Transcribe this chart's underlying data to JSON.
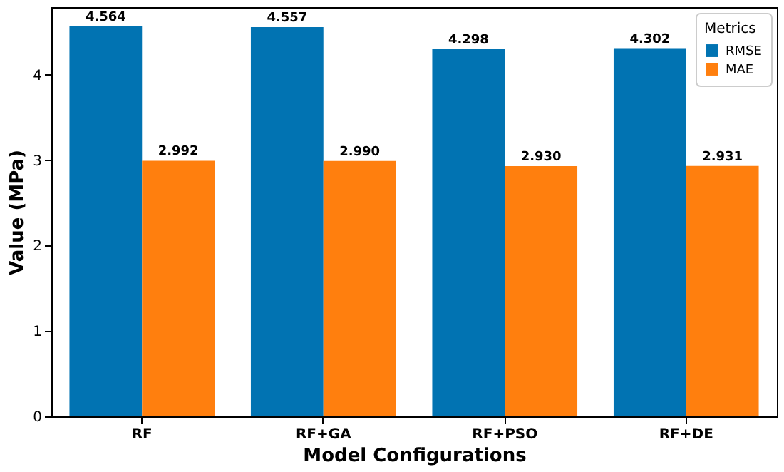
{
  "chart_data": {
    "type": "bar",
    "categories": [
      "RF",
      "RF+GA",
      "RF+PSO",
      "RF+DE"
    ],
    "series": [
      {
        "name": "RMSE",
        "color": "#0173b2",
        "values": [
          4.564,
          4.557,
          4.298,
          4.302
        ],
        "value_labels": [
          "4.564",
          "4.557",
          "4.298",
          "4.302"
        ]
      },
      {
        "name": "MAE",
        "color": "#ff7f0e",
        "values": [
          2.992,
          2.99,
          2.93,
          2.931
        ],
        "value_labels": [
          "2.992",
          "2.990",
          "2.930",
          "2.931"
        ]
      }
    ],
    "xlabel": "Model Configurations",
    "ylabel": "Value (MPa)",
    "legend_title": "Metrics",
    "ylim": [
      0,
      4.79
    ],
    "yticks": [
      0,
      1,
      2,
      3,
      4
    ],
    "legend": "top right",
    "grid": false
  }
}
